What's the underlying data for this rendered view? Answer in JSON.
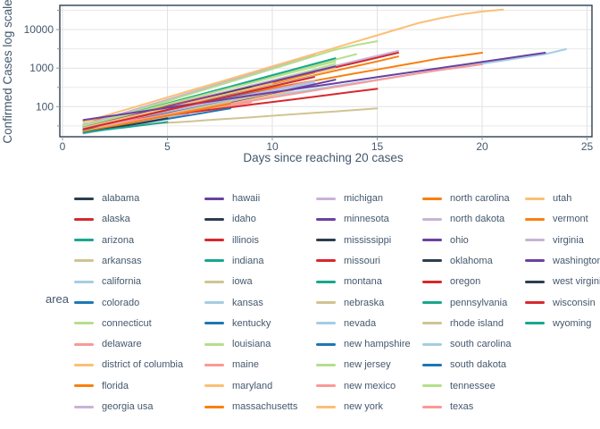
{
  "chart_data": {
    "type": "line",
    "title": "",
    "xlabel": "Days since reaching 20 cases",
    "ylabel": "Confirmed Cases log scale",
    "x_tick_labels": [
      "0",
      "5",
      "10",
      "15",
      "20",
      "25"
    ],
    "x_ticks": [
      0,
      5,
      10,
      15,
      20,
      25
    ],
    "y_tick_labels": [
      "100",
      "1000",
      "10000"
    ],
    "y_ticks": [
      100,
      1000,
      10000
    ],
    "y_minor_ticks": [
      31.6,
      316,
      3162,
      31623
    ],
    "xlim": [
      -0.13,
      25.3
    ],
    "ylim_log": [
      16,
      42000
    ],
    "grid": "on",
    "legend_title": "area",
    "legend_position": "bottom",
    "start_day": 1,
    "palette": [
      "#2b3e50",
      "#d7282d",
      "#18a78f",
      "#cfc493",
      "#a5cde3",
      "#1f77b4",
      "#b4df8c",
      "#f89a98",
      "#fcbf75",
      "#f8800f",
      "#c9b3d6",
      "#6a41a1"
    ],
    "series": [
      {
        "name": "alabama",
        "values": [
          35,
          44,
          61,
          78,
          106,
          138,
          167,
          240
        ]
      },
      {
        "name": "alaska",
        "values": [
          25,
          30,
          36,
          48,
          59
        ]
      },
      {
        "name": "arizona",
        "values": [
          30,
          44,
          52,
          76,
          104,
          128,
          182,
          246,
          318,
          450
        ]
      },
      {
        "name": "arkansas",
        "values": [
          28,
          33,
          46,
          62,
          70,
          96,
          109,
          136,
          186,
          218,
          280
        ]
      },
      {
        "name": "california",
        "values": [
          35,
          42,
          51,
          62,
          75,
          91,
          110,
          133,
          161,
          194,
          235,
          284,
          344,
          416,
          503,
          608,
          736,
          890,
          1076,
          1302,
          1575,
          1905,
          2304,
          3100
        ]
      },
      {
        "name": "colorado",
        "values": [
          32,
          43,
          57,
          77,
          103,
          138,
          184,
          247,
          330,
          442,
          592,
          792,
          1060,
          1400
        ]
      },
      {
        "name": "connecticut",
        "values": [
          29,
          40,
          54,
          74,
          101,
          139,
          190,
          260,
          356,
          487,
          667,
          913,
          1300
        ]
      },
      {
        "name": "delaware",
        "values": [
          26,
          32,
          39,
          47,
          58,
          71,
          87,
          106,
          130
        ]
      },
      {
        "name": "district of columbia",
        "values": [
          22,
          28,
          36,
          46,
          59,
          76,
          97,
          124,
          159,
          204,
          270
        ]
      },
      {
        "name": "florida",
        "values": [
          30,
          40,
          53,
          70,
          92,
          122,
          161,
          213,
          281,
          371,
          490,
          648,
          856,
          1130,
          1494,
          2000
        ]
      },
      {
        "name": "georgia usa",
        "values": [
          33,
          44,
          60,
          80,
          108,
          145,
          195,
          262,
          352,
          473,
          636,
          855,
          1150,
          1546,
          2079,
          2800
        ]
      },
      {
        "name": "hawaii",
        "values": [
          24,
          32,
          45,
          60
        ]
      },
      {
        "name": "idaho",
        "values": [
          23,
          32,
          44,
          62,
          86,
          120
        ]
      },
      {
        "name": "illinois",
        "values": [
          32,
          43,
          57,
          76,
          102,
          137,
          183,
          244,
          327,
          437,
          584,
          780,
          1043,
          1394,
          1864,
          2500
        ]
      },
      {
        "name": "indiana",
        "values": [
          30,
          42,
          59,
          83,
          117,
          164,
          231,
          324,
          456,
          640,
          900
        ]
      },
      {
        "name": "iowa",
        "values": [
          23,
          29,
          36,
          46,
          57,
          72,
          90,
          114,
          143,
          180
        ]
      },
      {
        "name": "kansas",
        "values": [
          21,
          27,
          36,
          46,
          60,
          78,
          101,
          131,
          170
        ]
      },
      {
        "name": "kentucky",
        "values": [
          25,
          33,
          43,
          57,
          75,
          99,
          131,
          172,
          227,
          300
        ]
      },
      {
        "name": "louisiana",
        "values": [
          34,
          47,
          65,
          90,
          124,
          172,
          238,
          329,
          455,
          629,
          870,
          1203,
          1663,
          2300
        ]
      },
      {
        "name": "maine",
        "values": [
          30,
          38,
          49,
          62,
          79,
          101,
          129,
          165,
          210
        ]
      },
      {
        "name": "maryland",
        "values": [
          31,
          41,
          55,
          74,
          99,
          132,
          176,
          235,
          313,
          418,
          558,
          744,
          990
        ]
      },
      {
        "name": "massachusetts",
        "values": [
          41,
          51,
          64,
          80,
          100,
          125,
          156,
          194,
          243,
          303,
          378,
          472,
          590,
          736,
          919,
          1148,
          1433,
          1800,
          2100,
          2500
        ]
      },
      {
        "name": "michigan",
        "values": [
          33,
          48,
          71,
          104,
          152,
          223,
          326,
          478,
          700,
          1025,
          1502,
          2200
        ]
      },
      {
        "name": "minnesota",
        "values": [
          21,
          27,
          36,
          46,
          60,
          78,
          102,
          132,
          172,
          224,
          291,
          378,
          500
        ]
      },
      {
        "name": "mississippi",
        "values": [
          22,
          30,
          42,
          59,
          81,
          113,
          156,
          216,
          300
        ]
      },
      {
        "name": "missouri",
        "values": [
          24,
          31,
          41,
          54,
          71,
          93,
          122,
          160,
          210,
          275,
          360
        ]
      },
      {
        "name": "montana",
        "values": [
          24,
          30,
          37,
          46,
          58,
          72,
          90
        ]
      },
      {
        "name": "nebraska",
        "values": [
          27,
          29,
          32,
          35,
          38,
          41,
          45,
          49,
          53,
          58,
          63,
          69,
          75,
          82,
          90
        ]
      },
      {
        "name": "nevada",
        "values": [
          26,
          35,
          46,
          62,
          82,
          110,
          146,
          195,
          260,
          347,
          463,
          620
        ]
      },
      {
        "name": "new hampshire",
        "values": [
          26,
          34,
          43,
          56,
          72,
          93,
          120,
          156,
          201,
          260
        ]
      },
      {
        "name": "new jersey",
        "values": [
          30,
          44,
          65,
          95,
          139,
          205,
          300,
          441,
          647,
          950,
          1394,
          2046,
          3003,
          4000,
          5000
        ]
      },
      {
        "name": "new mexico",
        "values": [
          23,
          29,
          38,
          48,
          62,
          79,
          101,
          130
        ]
      },
      {
        "name": "new york",
        "values": [
          40,
          57,
          83,
          120,
          174,
          252,
          365,
          529,
          767,
          1112,
          1612,
          2336,
          3386,
          4908,
          7114,
          10311,
          14945,
          19662,
          24734,
          29450,
          33000
        ]
      },
      {
        "name": "north carolina",
        "values": [
          27,
          37,
          50,
          67,
          91,
          124,
          168,
          227,
          308,
          417,
          565,
          760
        ]
      },
      {
        "name": "north dakota",
        "values": [
          20,
          25,
          32,
          41,
          51,
          65
        ]
      },
      {
        "name": "ohio",
        "values": [
          29,
          39,
          53,
          72,
          98,
          132,
          179,
          243,
          329,
          445,
          602,
          815,
          1100
        ]
      },
      {
        "name": "oklahoma",
        "values": [
          24,
          33,
          46,
          63,
          88,
          121,
          168,
          232,
          320
        ]
      },
      {
        "name": "oregon",
        "values": [
          32,
          37,
          44,
          51,
          60,
          70,
          82,
          96,
          113,
          132,
          154,
          181,
          212,
          248,
          290
        ]
      },
      {
        "name": "pennsylvania",
        "values": [
          31,
          43,
          61,
          86,
          120,
          169,
          237,
          332,
          466,
          654,
          917,
          1286,
          1800
        ]
      },
      {
        "name": "rhode island",
        "values": [
          23,
          30,
          38,
          50,
          64,
          83,
          107,
          138,
          178,
          230
        ]
      },
      {
        "name": "south carolina",
        "values": [
          28,
          36,
          46,
          59,
          75,
          96,
          123,
          157,
          201,
          257,
          328,
          420
        ]
      },
      {
        "name": "south dakota",
        "values": [
          21,
          26,
          32,
          39,
          48,
          59,
          73,
          90
        ]
      },
      {
        "name": "tennessee",
        "values": [
          32,
          44,
          61,
          84,
          116,
          159,
          220,
          303,
          417,
          575,
          792,
          1091,
          1500
        ]
      },
      {
        "name": "texas",
        "values": [
          27,
          33,
          41,
          50,
          62,
          76,
          93,
          115,
          141,
          173,
          213,
          262,
          322,
          395,
          486,
          597,
          734,
          902,
          1050,
          1250
        ]
      },
      {
        "name": "utah",
        "values": [
          28,
          38,
          51,
          68,
          92,
          123,
          165,
          222,
          298,
          400
        ]
      },
      {
        "name": "vermont",
        "values": [
          22,
          28,
          36,
          46,
          58,
          74,
          94,
          120
        ]
      },
      {
        "name": "virginia",
        "values": [
          27,
          35,
          45,
          58,
          75,
          97,
          126,
          163,
          211,
          273,
          354,
          460
        ]
      },
      {
        "name": "washington",
        "values": [
          45,
          54,
          65,
          78,
          94,
          113,
          135,
          162,
          195,
          234,
          280,
          337,
          404,
          485,
          582,
          698,
          838,
          1006,
          1207,
          1448,
          1738,
          2085,
          2500
        ]
      },
      {
        "name": "west virginia",
        "values": [
          21,
          26,
          32,
          40,
          50
        ]
      },
      {
        "name": "wisconsin",
        "values": [
          26,
          35,
          46,
          61,
          81,
          108,
          143,
          190,
          253,
          335,
          445,
          590
        ]
      },
      {
        "name": "wyoming",
        "values": [
          21,
          25,
          29,
          34,
          40
        ]
      }
    ]
  },
  "legend": {
    "title": "area",
    "column_counts": [
      11,
      11,
      11,
      11,
      7
    ]
  },
  "colors": {
    "axis_text": "#44586d",
    "panel_border": "#2d3e50",
    "grid_major": "#e2e2e2",
    "grid_minor": "#eaeaea",
    "tick_mark": "#8a97a5",
    "background": "#ffffff"
  }
}
